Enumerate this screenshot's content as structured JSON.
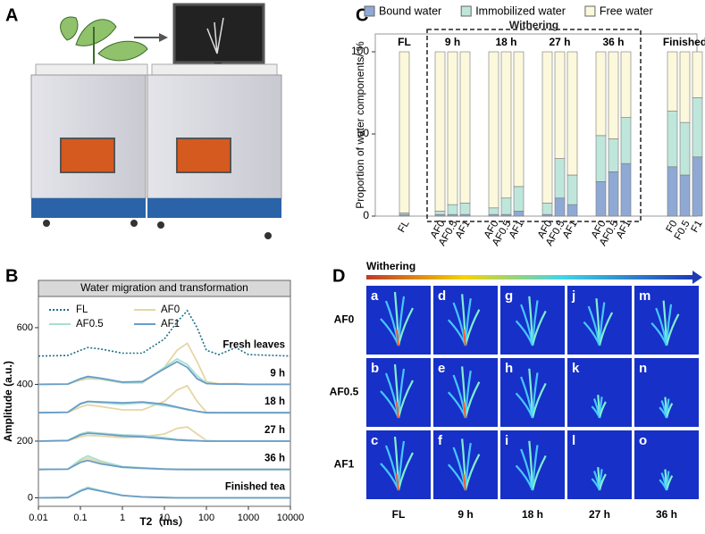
{
  "panel_labels": [
    "A",
    "B",
    "C",
    "D"
  ],
  "chart_data": [
    {
      "type": "bar",
      "stacked": true,
      "ylabel": "Proportion of water components/ %",
      "ylim": [
        0,
        100
      ],
      "yticks": [
        0,
        50,
        100
      ],
      "annotation": "Withering",
      "groups": [
        {
          "name": "FL",
          "categories": [
            "FL"
          ]
        },
        {
          "name": "9 h",
          "categories": [
            "AF0",
            "AF0.5",
            "AF1"
          ]
        },
        {
          "name": "18 h",
          "categories": [
            "AF0",
            "AF0.5",
            "AF1"
          ]
        },
        {
          "name": "27 h",
          "categories": [
            "AF0",
            "AF0.5",
            "AF1"
          ]
        },
        {
          "name": "36 h",
          "categories": [
            "AF0",
            "AF0.5",
            "AF1"
          ]
        },
        {
          "name": "Finished",
          "categories": [
            "F0",
            "F0.5",
            "F1"
          ]
        }
      ],
      "series": [
        {
          "name": "Bound water",
          "color": "#8fa9d4",
          "values": [
            1,
            1,
            1,
            1,
            1,
            1,
            3,
            1,
            11,
            7,
            21,
            27,
            32,
            30,
            25,
            36
          ]
        },
        {
          "name": "Immobilized water",
          "color": "#bfe6da",
          "values": [
            1,
            2,
            6,
            7,
            4,
            10,
            15,
            7,
            24,
            18,
            28,
            20,
            28,
            34,
            32,
            36
          ]
        },
        {
          "name": "Free water",
          "color": "#fbf8dc",
          "values": [
            98,
            97,
            93,
            92,
            95,
            89,
            82,
            92,
            65,
            75,
            51,
            53,
            40,
            36,
            43,
            28
          ]
        }
      ]
    },
    {
      "type": "line",
      "title": "Water migration and transformation",
      "xlabel": "T2（ms）",
      "ylabel": "Amplitude (a.u.)",
      "xscale": "log",
      "x": [
        0.01,
        0.05,
        0.1,
        0.15,
        0.3,
        1,
        3,
        10,
        20,
        35,
        60,
        100,
        200,
        500,
        1000,
        10000
      ],
      "xlim": [
        0.01,
        10000
      ],
      "xticks": [
        0.01,
        0.1,
        1,
        10,
        100,
        1000,
        10000
      ],
      "ylim": [
        -30,
        710
      ],
      "yticks": [
        0,
        200,
        400,
        600
      ],
      "annotations": [
        "Fresh leaves",
        "9 h",
        "18 h",
        "27 h",
        "36 h",
        "Finished tea"
      ],
      "series": [
        {
          "name": "FL",
          "color": "#1c6f8a",
          "dash": "dotted",
          "curves": [
            [
              500,
              502,
              520,
              530,
              525,
              510,
              510,
              560,
              620,
              660,
              600,
              520,
              505,
              530,
              505,
              500
            ]
          ]
        },
        {
          "name": "AF0",
          "color": "#e6d6a6",
          "curves": [
            [
              400,
              401,
              415,
              420,
              418,
              405,
              405,
              460,
              520,
              545,
              480,
              410,
              402,
              403,
              400,
              400
            ],
            [
              300,
              301,
              320,
              328,
              322,
              310,
              310,
              340,
              380,
              395,
              340,
              302,
              300,
              300,
              300,
              300
            ],
            [
              200,
              201,
              215,
              220,
              218,
              212,
              215,
              225,
              245,
              250,
              225,
              202,
              200,
              200,
              200,
              200
            ],
            [
              100,
              101,
              130,
              140,
              125,
              108,
              104,
              102,
              101,
              100,
              100,
              100,
              100,
              100,
              100,
              100
            ],
            [
              0,
              1,
              25,
              35,
              25,
              8,
              3,
              1,
              0,
              0,
              0,
              0,
              0,
              0,
              0,
              0
            ]
          ]
        },
        {
          "name": "AF0.5",
          "color": "#a6dfd0",
          "curves": [
            [
              400,
              401,
              418,
              425,
              420,
              406,
              407,
              460,
              490,
              470,
              430,
              405,
              401,
              401,
              400,
              400
            ],
            [
              300,
              302,
              330,
              338,
              335,
              330,
              335,
              325,
              318,
              310,
              305,
              300,
              300,
              300,
              300,
              300
            ],
            [
              200,
              202,
              225,
              232,
              228,
              222,
              220,
              212,
              206,
              204,
              202,
              200,
              200,
              200,
              200,
              200
            ],
            [
              100,
              101,
              135,
              148,
              130,
              110,
              106,
              102,
              101,
              100,
              100,
              100,
              100,
              100,
              100,
              100
            ],
            [
              0,
              1,
              27,
              37,
              26,
              9,
              3,
              1,
              0,
              0,
              0,
              0,
              0,
              0,
              0,
              0
            ]
          ]
        },
        {
          "name": "AF1",
          "color": "#6a9cc8",
          "curves": [
            [
              400,
              401,
              420,
              428,
              422,
              408,
              410,
              455,
              480,
              460,
              420,
              403,
              401,
              401,
              400,
              400
            ],
            [
              300,
              302,
              332,
              340,
              338,
              335,
              338,
              330,
              320,
              312,
              305,
              300,
              300,
              300,
              300,
              300
            ],
            [
              200,
              202,
              222,
              228,
              225,
              218,
              215,
              208,
              204,
              202,
              201,
              200,
              200,
              200,
              200,
              200
            ],
            [
              100,
              101,
              125,
              132,
              120,
              108,
              104,
              101,
              100,
              100,
              100,
              100,
              100,
              100,
              100,
              100
            ],
            [
              0,
              1,
              24,
              33,
              24,
              8,
              3,
              1,
              0,
              0,
              0,
              0,
              0,
              0,
              0,
              0
            ]
          ]
        }
      ]
    }
  ],
  "panel_d": {
    "scale_label": "Withering",
    "row_labels": [
      "AF0",
      "AF0.5",
      "AF1"
    ],
    "column_labels": [
      "FL",
      "9 h",
      "18 h",
      "27 h",
      "36 h"
    ],
    "image_labels": [
      [
        "a",
        "d",
        "g",
        "j",
        "m"
      ],
      [
        "b",
        "e",
        "h",
        "k",
        "n"
      ],
      [
        "c",
        "f",
        "i",
        "l",
        "o"
      ]
    ]
  }
}
